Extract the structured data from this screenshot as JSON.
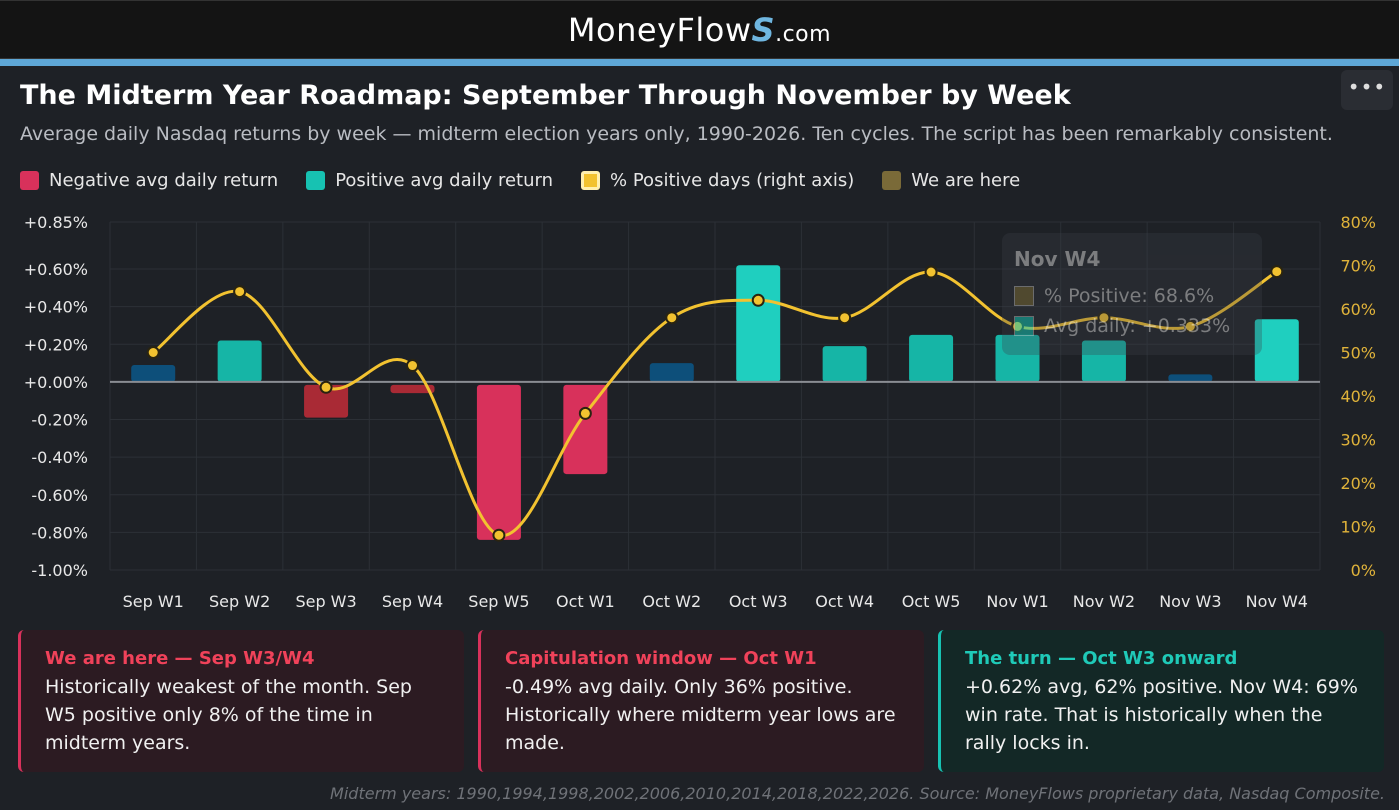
{
  "header": {
    "brand_main": "MoneyFlow",
    "brand_s": "S",
    "brand_suffix": ".com",
    "menu_icon": "more-dots-icon"
  },
  "title": "The Midterm Year Roadmap: September Through November by Week",
  "subtitle": "Average daily Nasdaq returns by week — midterm election years only, 1990-2026. Ten cycles. The script has been remarkably consistent.",
  "legend": [
    {
      "label": "Negative avg daily return",
      "color": "#d8315b"
    },
    {
      "label": "Positive avg daily return",
      "color": "#17c2b2"
    },
    {
      "label": "% Positive days (right axis)",
      "color": "#f2c230"
    },
    {
      "label": "We are here",
      "color": "#7a6a38"
    }
  ],
  "colors": {
    "negative": "#d8315b",
    "negative_dim": "#a92a35",
    "positive": "#16b5a6",
    "positive_bright": "#1fcfbf",
    "positive_dim": "#0d4f7a",
    "line": "#f2c230",
    "zero_line": "#8a8d93",
    "grid": "#2c3036",
    "left_tick": "#e8e8e8",
    "right_tick": "#e0b33a"
  },
  "chart_data": {
    "type": "bar",
    "categories": [
      "Sep W1",
      "Sep W2",
      "Sep W3",
      "Sep W4",
      "Sep W5",
      "Oct W1",
      "Oct W2",
      "Oct W3",
      "Oct W4",
      "Oct W5",
      "Nov W1",
      "Nov W2",
      "Nov W3",
      "Nov W4"
    ],
    "series": [
      {
        "type": "bar",
        "axis": "left",
        "values": [
          0.09,
          0.22,
          -0.19,
          -0.06,
          -0.84,
          -0.49,
          0.1,
          0.62,
          0.19,
          0.25,
          0.25,
          0.22,
          0.04,
          0.333
        ]
      },
      {
        "type": "line",
        "axis": "right",
        "values": [
          50,
          64,
          42,
          47,
          8,
          36,
          58,
          62,
          58,
          68.5,
          56,
          58,
          56,
          68.6
        ]
      }
    ],
    "left_ticks": [
      "+0.85%",
      "+0.60%",
      "+0.40%",
      "+0.20%",
      "+0.00%",
      "-0.20%",
      "-0.40%",
      "-0.60%",
      "-0.80%",
      "-1.00%"
    ],
    "left_tick_values": [
      0.85,
      0.6,
      0.4,
      0.2,
      0,
      -0.2,
      -0.4,
      -0.6,
      -0.8,
      -1.0
    ],
    "right_ticks": [
      "80%",
      "70%",
      "60%",
      "50%",
      "40%",
      "30%",
      "20%",
      "10%",
      "0%"
    ],
    "right_tick_values": [
      80,
      70,
      60,
      50,
      40,
      30,
      20,
      10,
      0
    ],
    "ylim_left": [
      -1.0,
      0.85
    ],
    "ylim_right": [
      0,
      80
    ],
    "grid": true
  },
  "tooltip": {
    "title": "Nov W4",
    "row1": "% Positive: 68.6%",
    "row2": "Avg daily: +0.333%",
    "row1_color": "#7a6a38",
    "row2_color": "#17c2b2"
  },
  "cards": [
    {
      "head": "We are here — Sep W3/W4",
      "body": "Historically weakest of the month. Sep W5 positive only 8% of the time in midterm years."
    },
    {
      "head": "Capitulation window — Oct W1",
      "body": "-0.49% avg daily. Only 36% positive. Historically where midterm year lows are made."
    },
    {
      "head": "The turn — Oct W3 onward",
      "body": "+0.62% avg, 62% positive. Nov W4: 69% win rate. That is historically when the rally locks in."
    }
  ],
  "footer": "Midterm years: 1990,1994,1998,2002,2006,2010,2014,2018,2022,2026. Source: MoneyFlows proprietary data, Nasdaq Composite."
}
